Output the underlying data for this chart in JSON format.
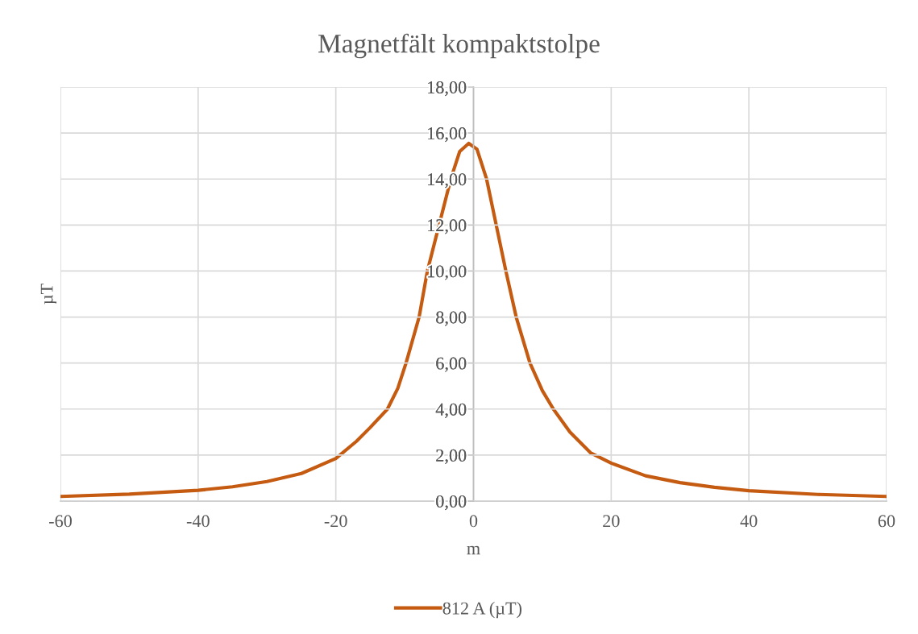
{
  "chart_data": {
    "type": "line",
    "title": "Magnetfält kompaktstolpe",
    "xlabel": "m",
    "ylabel": "µT",
    "series": [
      {
        "name": "812 A (µT)",
        "color": "#c55a11",
        "x": [
          -60,
          -50,
          -40,
          -35,
          -30,
          -25,
          -20,
          -17,
          -15,
          -12.5,
          -11,
          -9.8,
          -7.9,
          -6.7,
          -5.0,
          -3.3,
          -2.0,
          -0.7,
          0.5,
          1.9,
          3.3,
          4.7,
          6.2,
          8.2,
          10,
          11.6,
          14,
          17,
          20,
          25,
          30,
          35,
          40,
          50,
          60
        ],
        "values": [
          0.2,
          0.3,
          0.47,
          0.62,
          0.85,
          1.2,
          1.85,
          2.6,
          3.2,
          4.0,
          4.9,
          6.0,
          8.0,
          10.0,
          12.0,
          14.0,
          15.2,
          15.55,
          15.3,
          14.0,
          12.0,
          10.0,
          8.0,
          6.0,
          4.8,
          4.0,
          3.0,
          2.1,
          1.65,
          1.1,
          0.8,
          0.6,
          0.45,
          0.29,
          0.2
        ]
      }
    ],
    "xlim": [
      -60,
      60
    ],
    "xticks": [
      -60,
      -40,
      -20,
      0,
      20,
      40,
      60
    ],
    "ylim": [
      0,
      18
    ],
    "yticks": [
      {
        "value": 0,
        "label": "0,00"
      },
      {
        "value": 2,
        "label": "2,00"
      },
      {
        "value": 4,
        "label": "4,00"
      },
      {
        "value": 6,
        "label": "6,00"
      },
      {
        "value": 8,
        "label": "8,00"
      },
      {
        "value": 10,
        "label": "10,00"
      },
      {
        "value": 12,
        "label": "12,00"
      },
      {
        "value": 14,
        "label": "14,00"
      },
      {
        "value": 16,
        "label": "16,00"
      },
      {
        "value": 18,
        "label": "18,00"
      }
    ],
    "grid": true,
    "legend": "bottom",
    "marker": "none",
    "line_style": "solid"
  }
}
